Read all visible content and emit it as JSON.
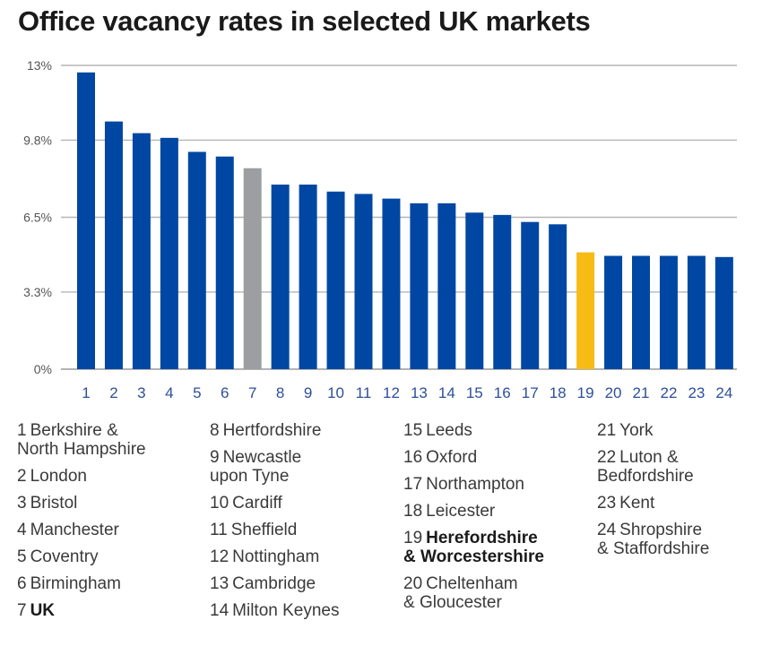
{
  "chart_data": {
    "type": "bar",
    "title": "Office vacancy rates in selected UK markets",
    "xlabel": "",
    "ylabel": "",
    "ylim": [
      0,
      13
    ],
    "yticks": [
      {
        "value": 0,
        "label": "0%"
      },
      {
        "value": 3.3,
        "label": "3.3%"
      },
      {
        "value": 6.5,
        "label": "6.5%"
      },
      {
        "value": 9.8,
        "label": "9.8%"
      },
      {
        "value": 13,
        "label": "13%"
      }
    ],
    "grid": true,
    "categories": [
      "1",
      "2",
      "3",
      "4",
      "5",
      "6",
      "7",
      "8",
      "9",
      "10",
      "11",
      "12",
      "13",
      "14",
      "15",
      "16",
      "17",
      "18",
      "19",
      "20",
      "21",
      "22",
      "23",
      "24"
    ],
    "values": [
      12.7,
      10.6,
      10.1,
      9.9,
      9.3,
      9.1,
      8.6,
      7.9,
      7.9,
      7.6,
      7.5,
      7.3,
      7.1,
      7.1,
      6.7,
      6.6,
      6.3,
      6.2,
      5.0,
      4.85,
      4.85,
      4.85,
      4.85,
      4.8
    ],
    "colors": {
      "default": "#0047a3",
      "highlight_uk": "#9d9ea2",
      "highlight_hereford": "#f7bb16",
      "grid": "#b5b5b5"
    },
    "highlights": {
      "7": "highlight_uk",
      "19": "highlight_hereford"
    },
    "legend": {
      "columns": [
        [
          {
            "num": "1",
            "text": "Berkshire & North Hampshire",
            "lines": [
              "Berkshire &",
              "North Hampshire"
            ]
          },
          {
            "num": "2",
            "text": "London"
          },
          {
            "num": "3",
            "text": "Bristol"
          },
          {
            "num": "4",
            "text": "Manchester"
          },
          {
            "num": "5",
            "text": "Coventry"
          },
          {
            "num": "6",
            "text": "Birmingham"
          },
          {
            "num": "7",
            "text": "UK",
            "bold": true
          }
        ],
        [
          {
            "num": "8",
            "text": "Hertfordshire"
          },
          {
            "num": "9",
            "text": "Newcastle upon Tyne",
            "lines": [
              "Newcastle",
              "upon Tyne"
            ]
          },
          {
            "num": "10",
            "text": "Cardiff"
          },
          {
            "num": "11",
            "text": "Sheffield"
          },
          {
            "num": "12",
            "text": "Nottingham"
          },
          {
            "num": "13",
            "text": "Cambridge"
          },
          {
            "num": "14",
            "text": "Milton Keynes"
          }
        ],
        [
          {
            "num": "15",
            "text": "Leeds"
          },
          {
            "num": "16",
            "text": "Oxford"
          },
          {
            "num": "17",
            "text": "Northampton"
          },
          {
            "num": "18",
            "text": "Leicester"
          },
          {
            "num": "19",
            "text": "Herefordshire & Worcestershire",
            "lines": [
              "Herefordshire",
              "& Worcestershire"
            ],
            "bold": true
          },
          {
            "num": "20",
            "text": "Cheltenham & Gloucester",
            "lines": [
              "Cheltenham",
              "& Gloucester"
            ]
          }
        ],
        [
          {
            "num": "21",
            "text": "York"
          },
          {
            "num": "22",
            "text": "Luton & Bedfordshire",
            "lines": [
              "Luton &",
              "Bedfordshire"
            ]
          },
          {
            "num": "23",
            "text": "Kent"
          },
          {
            "num": "24",
            "text": "Shropshire & Staffordshire",
            "lines": [
              "Shropshire",
              "& Staffordshire"
            ]
          }
        ]
      ]
    }
  }
}
